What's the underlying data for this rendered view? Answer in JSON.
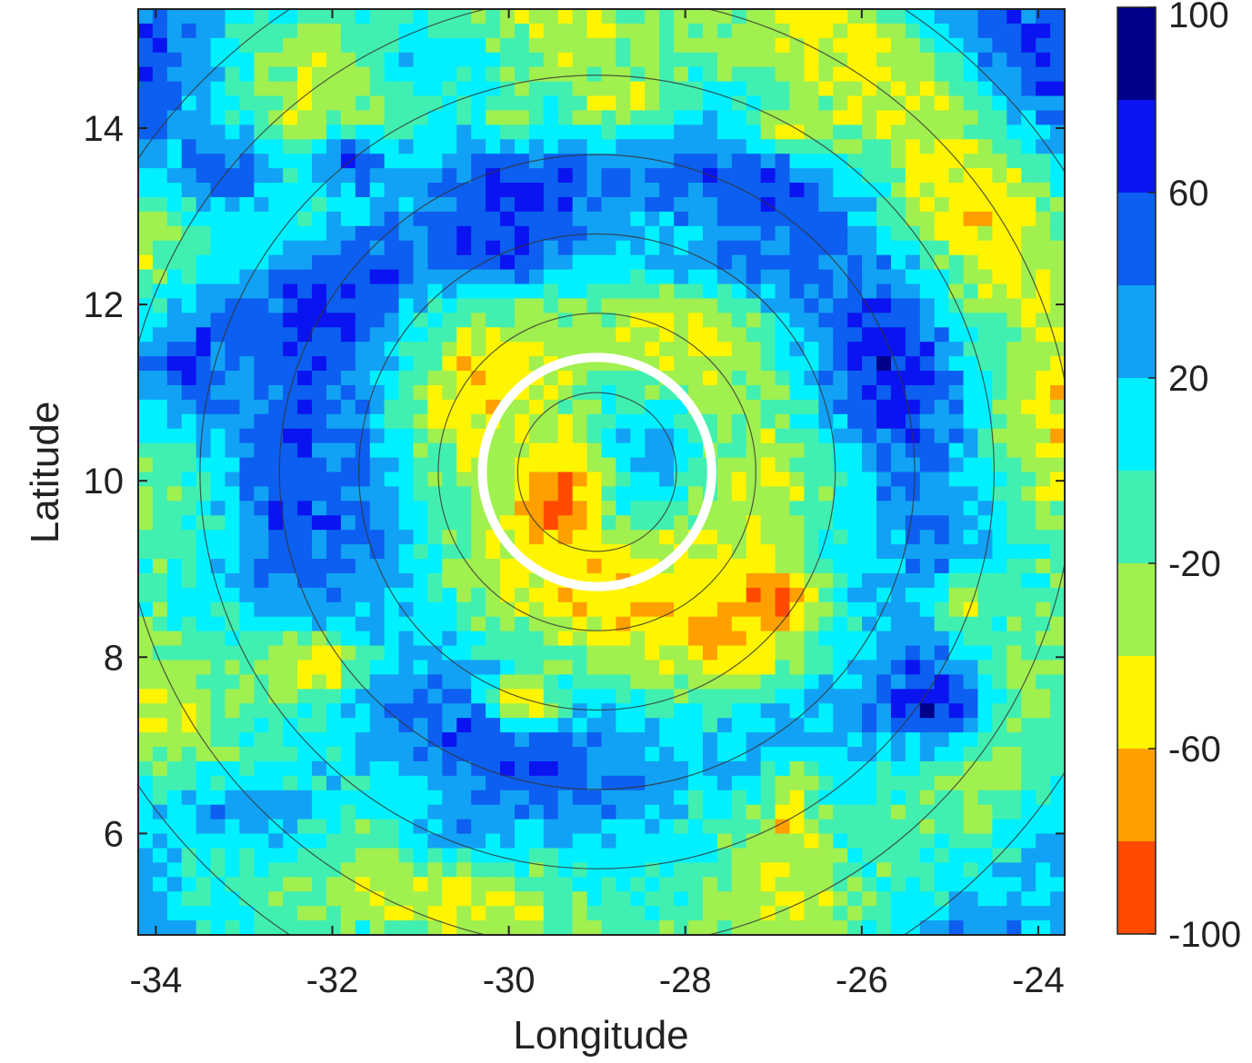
{
  "chart_data": {
    "type": "heatmap",
    "title": "",
    "xlabel": "Longitude",
    "ylabel": "Latitude",
    "xlim": [
      -34.2,
      -23.7
    ],
    "ylim": [
      4.85,
      15.35
    ],
    "x_ticks": [
      -34,
      -32,
      -30,
      -28,
      -26,
      -24
    ],
    "y_ticks": [
      6,
      8,
      10,
      12,
      14
    ],
    "x_tick_labels": [
      "-34",
      "-32",
      "-30",
      "-28",
      "-26",
      "-24"
    ],
    "y_tick_labels": [
      "6",
      "8",
      "10",
      "12",
      "14"
    ],
    "colorbar": {
      "range": [
        -100,
        100
      ],
      "tick_values": [
        100,
        60,
        20,
        -20,
        -60,
        -100
      ],
      "tick_labels": [
        "100",
        "60",
        "20",
        "-20",
        "-60",
        "-100"
      ],
      "levels": [
        {
          "from": 80,
          "to": 100,
          "color": "#00008b"
        },
        {
          "from": 60,
          "to": 80,
          "color": "#0a14f0"
        },
        {
          "from": 40,
          "to": 60,
          "color": "#0c5ff0"
        },
        {
          "from": 20,
          "to": 40,
          "color": "#12a2f5"
        },
        {
          "from": 0,
          "to": 20,
          "color": "#00f0ff"
        },
        {
          "from": -20,
          "to": 0,
          "color": "#41f0b0"
        },
        {
          "from": -40,
          "to": -20,
          "color": "#a0f04f"
        },
        {
          "from": -60,
          "to": -40,
          "color": "#fff500"
        },
        {
          "from": -80,
          "to": -60,
          "color": "#ffa000"
        },
        {
          "from": -100,
          "to": -80,
          "color": "#ff4a00"
        }
      ]
    },
    "center": {
      "lon": -29.0,
      "lat": 10.1
    },
    "ring_radii_deg": [
      0.9,
      1.8,
      2.7,
      3.6,
      4.5,
      5.4,
      6.3
    ],
    "highlight_circle": {
      "lon": -29.0,
      "lat": 10.1,
      "radius_deg": 1.3,
      "color": "#ffffff"
    },
    "anomalies": [
      {
        "lon": -29.3,
        "lat": 10.0,
        "rx": 0.6,
        "ry": 0.9,
        "value": -72
      },
      {
        "lon": -29.5,
        "lat": 9.7,
        "rx": 0.35,
        "ry": 0.35,
        "value": -85
      },
      {
        "lon": -28.4,
        "lat": 10.3,
        "rx": 0.3,
        "ry": 0.3,
        "value": 35
      },
      {
        "lon": -27.4,
        "lat": 8.3,
        "rx": 1.4,
        "ry": 0.9,
        "value": -68
      },
      {
        "lon": -27.0,
        "lat": 8.7,
        "rx": 0.4,
        "ry": 0.3,
        "value": -85
      },
      {
        "lon": -32.2,
        "lat": 7.9,
        "rx": 0.7,
        "ry": 0.35,
        "value": -55
      },
      {
        "lon": -29.8,
        "lat": 7.5,
        "rx": 0.45,
        "ry": 0.35,
        "value": -65
      },
      {
        "lon": -26.8,
        "lat": 6.2,
        "rx": 0.3,
        "ry": 0.6,
        "value": -60
      },
      {
        "lon": -24.8,
        "lat": 8.6,
        "rx": 0.3,
        "ry": 0.3,
        "value": -60
      },
      {
        "lon": -25.2,
        "lat": 7.5,
        "rx": 0.8,
        "ry": 0.7,
        "value": 78
      },
      {
        "lon": -33.6,
        "lat": 11.3,
        "rx": 0.9,
        "ry": 1.0,
        "value": 62
      },
      {
        "lon": -33.2,
        "lat": 13.5,
        "rx": 0.8,
        "ry": 0.6,
        "value": 55
      },
      {
        "lon": -31.8,
        "lat": 13.6,
        "rx": 0.5,
        "ry": 0.4,
        "value": 60
      },
      {
        "lon": -30.2,
        "lat": 12.6,
        "rx": 0.6,
        "ry": 0.35,
        "value": 65
      },
      {
        "lon": -31.5,
        "lat": 12.3,
        "rx": 0.4,
        "ry": 0.4,
        "value": 58
      },
      {
        "lon": -32.4,
        "lat": 10.0,
        "rx": 0.7,
        "ry": 1.0,
        "value": 55
      },
      {
        "lon": -28.7,
        "lat": 14.3,
        "rx": 0.6,
        "ry": 0.3,
        "value": -48
      },
      {
        "lon": -26.7,
        "lat": 14.0,
        "rx": 0.7,
        "ry": 0.3,
        "value": -45
      },
      {
        "lon": -25.3,
        "lat": 14.3,
        "rx": 0.5,
        "ry": 0.3,
        "value": -40
      },
      {
        "lon": -30.0,
        "lat": 14.1,
        "rx": 0.4,
        "ry": 0.3,
        "value": -35
      },
      {
        "lon": -27.4,
        "lat": 12.5,
        "rx": 1.4,
        "ry": 0.35,
        "value": 42
      },
      {
        "lon": -33.0,
        "lat": 6.2,
        "rx": 0.9,
        "ry": 0.5,
        "value": 35
      },
      {
        "lon": -30.6,
        "lat": 6.0,
        "rx": 0.7,
        "ry": 0.4,
        "value": 38
      },
      {
        "lon": -31.0,
        "lat": 14.8,
        "rx": 0.5,
        "ry": 0.3,
        "value": 30
      }
    ]
  }
}
